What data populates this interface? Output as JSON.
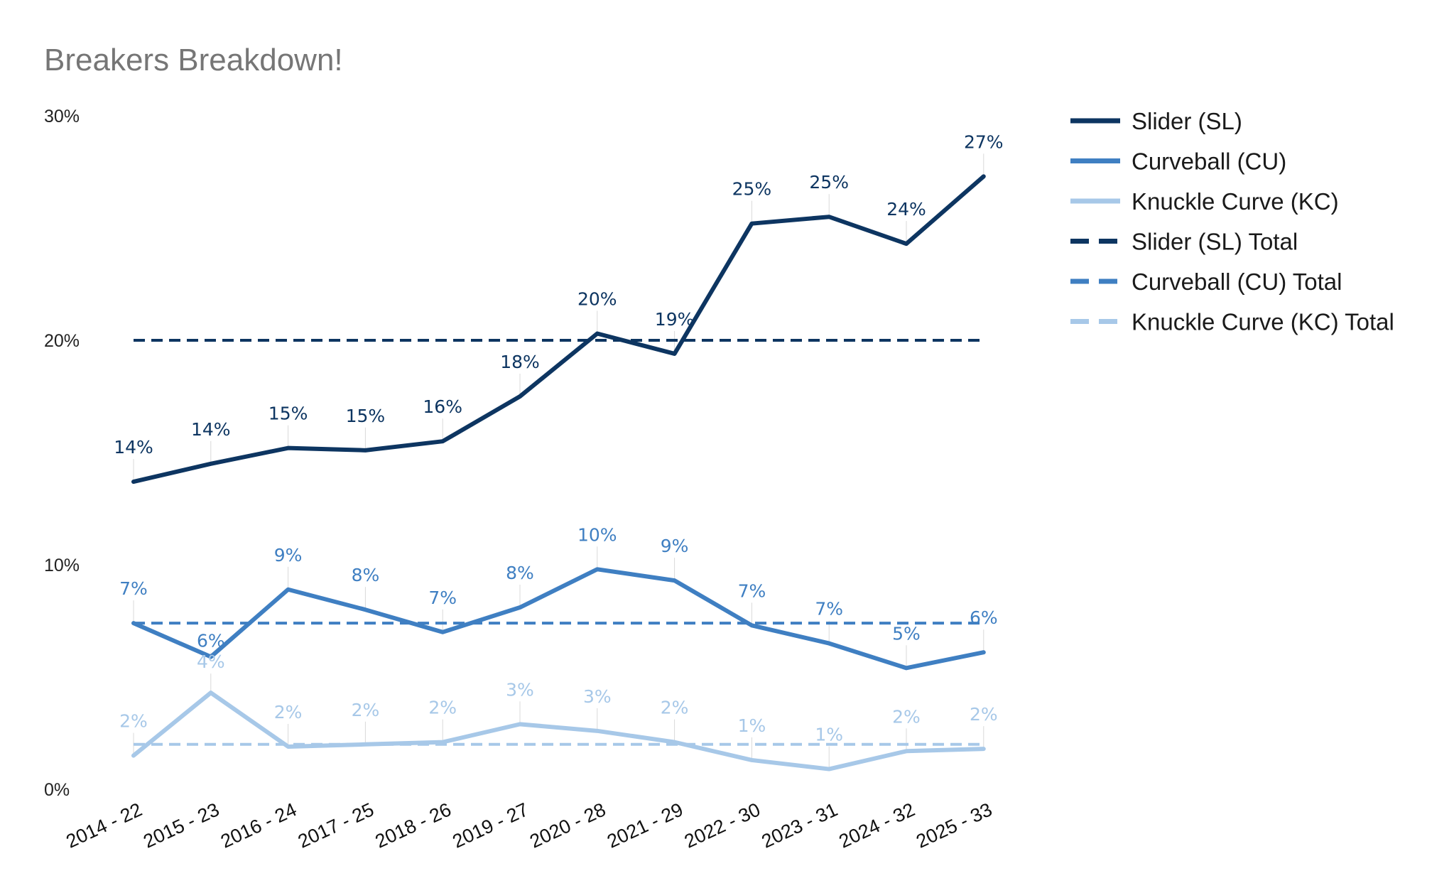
{
  "chart_data": {
    "type": "line",
    "title": "Breakers Breakdown!",
    "categories": [
      "2014 - 22",
      "2015 - 23",
      "2016 - 24",
      "2017 - 25",
      "2018 - 26",
      "2019 - 27",
      "2020 - 28",
      "2021 - 29",
      "2022 - 30",
      "2023 - 31",
      "2024 - 32",
      "2025 - 33"
    ],
    "ylim": [
      0,
      30
    ],
    "yticks": [
      "0%",
      "10%",
      "20%",
      "30%"
    ],
    "grid": false,
    "legend_position": "right",
    "series": [
      {
        "name": "Slider (SL)",
        "color": "#0d3561",
        "style": "solid",
        "values": [
          13.7,
          14.5,
          15.2,
          15.1,
          15.5,
          17.5,
          20.3,
          19.4,
          25.2,
          25.5,
          24.3,
          27.3
        ],
        "labels": [
          "14%",
          "14%",
          "15%",
          "15%",
          "16%",
          "18%",
          "20%",
          "19%",
          "25%",
          "25%",
          "24%",
          "27%"
        ]
      },
      {
        "name": "Curveball (CU)",
        "color": "#3f7fc2",
        "style": "solid",
        "values": [
          7.4,
          5.9,
          8.9,
          8.0,
          7.0,
          8.1,
          9.8,
          9.3,
          7.3,
          6.5,
          5.4,
          6.1
        ],
        "labels": [
          "7%",
          "6%",
          "9%",
          "8%",
          "7%",
          "8%",
          "10%",
          "9%",
          "7%",
          "7%",
          "5%",
          "6%"
        ]
      },
      {
        "name": "Knuckle Curve (KC)",
        "color": "#a7c8e8",
        "style": "solid",
        "values": [
          1.5,
          4.3,
          1.9,
          2.0,
          2.1,
          2.9,
          2.6,
          2.1,
          1.3,
          0.9,
          1.7,
          1.8
        ],
        "labels": [
          "2%",
          "4%",
          "2%",
          "2%",
          "2%",
          "3%",
          "3%",
          "2%",
          "1%",
          "1%",
          "2%",
          "2%"
        ]
      },
      {
        "name": "Slider (SL) Total",
        "color": "#0d3561",
        "style": "dashed",
        "values": [
          20.0,
          20.0,
          20.0,
          20.0,
          20.0,
          20.0,
          20.0,
          20.0,
          20.0,
          20.0,
          20.0,
          20.0
        ]
      },
      {
        "name": "Curveball (CU) Total",
        "color": "#3f7fc2",
        "style": "dashed",
        "values": [
          7.4,
          7.4,
          7.4,
          7.4,
          7.4,
          7.4,
          7.4,
          7.4,
          7.4,
          7.4,
          7.4,
          7.4
        ]
      },
      {
        "name": "Knuckle Curve (KC) Total",
        "color": "#a7c8e8",
        "style": "dashed",
        "values": [
          2.0,
          2.0,
          2.0,
          2.0,
          2.0,
          2.0,
          2.0,
          2.0,
          2.0,
          2.0,
          2.0,
          2.0
        ]
      }
    ]
  }
}
